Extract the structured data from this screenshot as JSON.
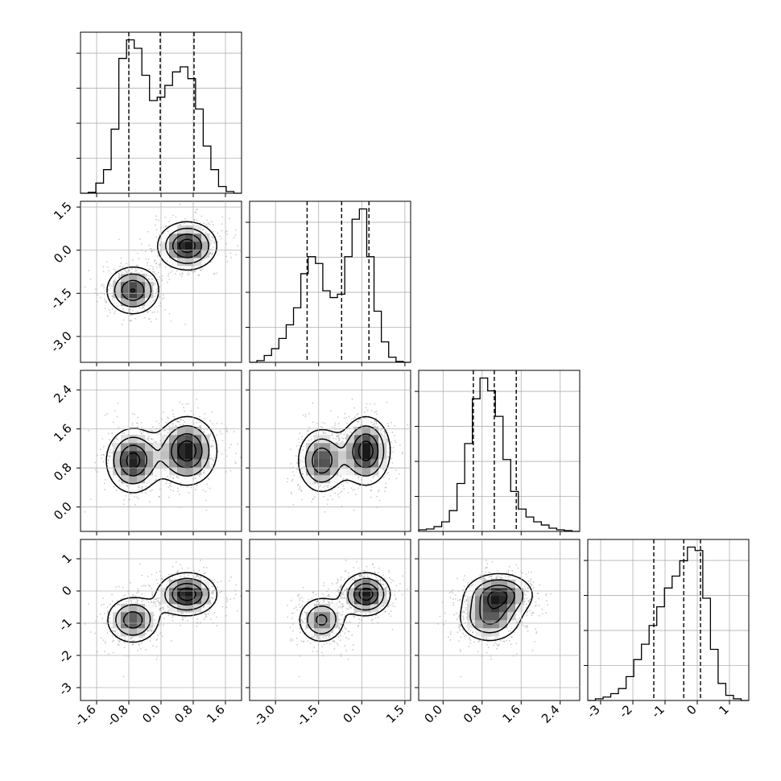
{
  "chart_data": {
    "type": "corner",
    "colors": {
      "hist_line": "#000000",
      "quantile_line": "#000000",
      "grid": "#b0b0b0",
      "contour": "#000000",
      "scatter": "#8c8c8c",
      "density_dark": "#000000",
      "density_light": "#ffffff"
    },
    "grid": true,
    "quantile_line_style": "dashed",
    "params": [
      {
        "range": [
          -2.0,
          2.0
        ],
        "ticks": [
          "-1.6",
          "-0.8",
          "0.0",
          "0.8",
          "1.6"
        ],
        "tick_values": [
          -1.6,
          -0.8,
          0.0,
          0.8,
          1.6
        ],
        "quantiles": [
          -0.8,
          -0.02,
          0.82
        ],
        "hist": [
          0,
          0.005,
          0.06,
          0.14,
          0.38,
          0.8,
          0.91,
          0.86,
          0.7,
          0.55,
          0.57,
          0.64,
          0.72,
          0.75,
          0.68,
          0.5,
          0.28,
          0.14,
          0.04,
          0.01,
          0.0
        ]
      },
      {
        "range": [
          -3.9,
          1.7
        ],
        "ticks": [
          "-3.0",
          "-1.5",
          "0.0",
          "1.5"
        ],
        "tick_values": [
          -3.0,
          -1.5,
          0.0,
          1.5
        ],
        "quantiles": [
          -1.9,
          -0.7,
          0.25
        ],
        "hist": [
          0,
          0.01,
          0.04,
          0.08,
          0.14,
          0.22,
          0.32,
          0.52,
          0.62,
          0.58,
          0.42,
          0.38,
          0.4,
          0.62,
          0.84,
          0.9,
          0.62,
          0.3,
          0.12,
          0.03,
          0.005,
          0.0
        ]
      },
      {
        "range": [
          -0.5,
          2.8
        ],
        "ticks": [
          "0.0",
          "0.8",
          "1.6",
          "2.4"
        ],
        "tick_values": [
          0.0,
          0.8,
          1.6,
          2.4
        ],
        "quantiles": [
          0.62,
          1.05,
          1.5
        ],
        "hist": [
          0.01,
          0.015,
          0.03,
          0.06,
          0.13,
          0.3,
          0.55,
          0.83,
          0.96,
          0.88,
          0.72,
          0.45,
          0.25,
          0.14,
          0.09,
          0.06,
          0.04,
          0.02,
          0.01,
          0.005,
          0.0
        ]
      },
      {
        "range": [
          -3.4,
          1.6
        ],
        "ticks": [
          "-3",
          "-2",
          "-1",
          "0",
          "1"
        ],
        "tick_values": [
          -3,
          -2,
          -1,
          0,
          1
        ],
        "quantiles": [
          -1.35,
          -0.42,
          0.1
        ],
        "hist": [
          0,
          0.01,
          0.02,
          0.04,
          0.07,
          0.14,
          0.24,
          0.33,
          0.44,
          0.55,
          0.66,
          0.73,
          0.82,
          0.9,
          0.88,
          0.6,
          0.3,
          0.1,
          0.03,
          0.01,
          0.0
        ]
      }
    ],
    "clusters": [
      {
        "mean": [
          -0.7,
          -1.4,
          0.95,
          -0.9
        ],
        "sd": [
          0.38,
          0.48,
          0.38,
          0.42
        ],
        "weight": 0.45
      },
      {
        "mean": [
          0.65,
          0.15,
          1.15,
          -0.1
        ],
        "sd": [
          0.42,
          0.48,
          0.4,
          0.38
        ],
        "weight": 0.55
      }
    ]
  }
}
